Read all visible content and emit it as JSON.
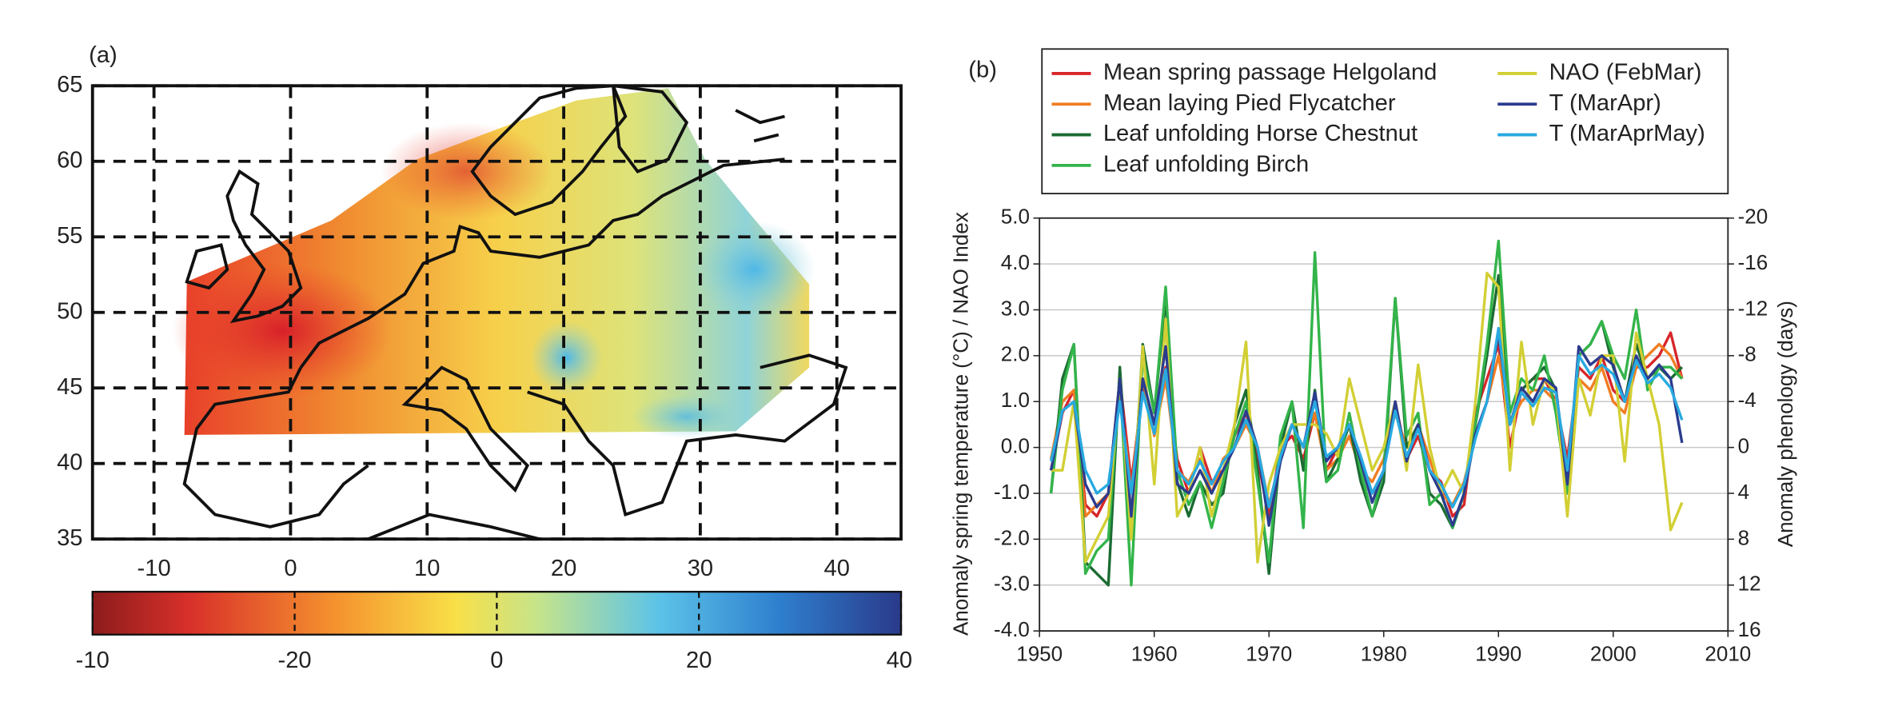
{
  "chart_data": [
    {
      "type": "map",
      "label": "(a)",
      "xlim": [
        -14.5,
        44.7
      ],
      "xticks": [
        -10,
        0,
        10,
        20,
        30,
        40
      ],
      "ylim": [
        35,
        65
      ],
      "yticks": [
        35,
        40,
        45,
        50,
        55,
        60,
        65
      ],
      "grid": true,
      "colorbar_labels": [
        "-10",
        "-20",
        "0",
        "20",
        "40"
      ]
    },
    {
      "type": "line",
      "label": "(b)",
      "ylabel": "Anomaly spring temperature (°C) / NAO Index",
      "y2label": "Anomaly phenology (days)",
      "xlim": [
        1950,
        2010
      ],
      "xticks": [
        1950,
        1960,
        1970,
        1980,
        1990,
        2000,
        2010
      ],
      "ylim": [
        -4,
        5
      ],
      "yticks": [
        {
          "value": -4,
          "label": "-4.0"
        },
        {
          "value": -3,
          "label": "-3.0"
        },
        {
          "value": -2,
          "label": "-2.0"
        },
        {
          "value": -1,
          "label": "-1.0"
        },
        {
          "value": 0,
          "label": "0.0"
        },
        {
          "value": 1,
          "label": "1.0"
        },
        {
          "value": 2,
          "label": "2.0"
        },
        {
          "value": 3,
          "label": "3.0"
        },
        {
          "value": 4,
          "label": "4.0"
        },
        {
          "value": 5,
          "label": "5.0"
        }
      ],
      "y2lim": [
        16,
        -20
      ],
      "y2ticks": [
        -20,
        -16,
        -12,
        -8,
        -4,
        0,
        4,
        8,
        12,
        16
      ],
      "grid": true,
      "x": [
        1951,
        1952,
        1953,
        1954,
        1955,
        1956,
        1957,
        1958,
        1959,
        1960,
        1961,
        1962,
        1963,
        1964,
        1965,
        1966,
        1967,
        1968,
        1969,
        1970,
        1971,
        1972,
        1973,
        1974,
        1975,
        1976,
        1977,
        1978,
        1979,
        1980,
        1981,
        1982,
        1983,
        1984,
        1985,
        1986,
        1987,
        1988,
        1989,
        1990,
        1991,
        1992,
        1993,
        1994,
        1995,
        1996,
        1997,
        1998,
        1999,
        2000,
        2001,
        2002,
        2003,
        2004,
        2005,
        2006
      ],
      "series": [
        {
          "name": "Mean spring passage Helgoland",
          "color": "#d7262a",
          "axis": "y2",
          "values": [
            2,
            -3,
            -5,
            5,
            6,
            4,
            -6,
            3,
            -5,
            -2,
            -7,
            1,
            4,
            0,
            3,
            2,
            -1,
            -3,
            1,
            6,
            0,
            -1,
            1,
            -3,
            2,
            0,
            -2,
            1,
            4,
            2,
            -4,
            1,
            -1,
            2,
            3,
            6,
            5,
            -3,
            -6,
            -9,
            0,
            -5,
            -6,
            -6,
            -4,
            1,
            -7,
            -6,
            -8,
            -5,
            -4,
            -7,
            -7,
            -8,
            -10,
            -6
          ]
        },
        {
          "name": "Mean laying Pied Flycatcher",
          "color": "#f07d22",
          "axis": "y2",
          "values": [
            1,
            -4,
            -5,
            6,
            5,
            4,
            -5,
            4,
            -6,
            -1,
            -6,
            2,
            3,
            1,
            4,
            1,
            0,
            -2,
            0,
            5,
            1,
            -2,
            0,
            -3,
            2,
            1,
            -1,
            2,
            3,
            1,
            -3,
            0,
            -2,
            1,
            4,
            5,
            3,
            -1,
            -4,
            -8,
            -2,
            -4,
            -5,
            -5,
            -4,
            2,
            -6,
            -5,
            -7,
            -4,
            -3,
            -7,
            -8,
            -9,
            -8,
            -6
          ]
        },
        {
          "name": "Leaf unfolding Horse Chestnut",
          "color": "#1b6b32",
          "axis": "y2",
          "values": [
            4,
            -6,
            -9,
            10,
            11,
            12,
            -7,
            8,
            -9,
            -3,
            -13,
            3,
            6,
            3,
            5,
            4,
            -2,
            -5,
            2,
            11,
            0,
            -4,
            2,
            -5,
            3,
            1,
            -2,
            3,
            6,
            3,
            -13,
            0,
            -2,
            4,
            5,
            7,
            4,
            -2,
            -8,
            -15,
            -2,
            -5,
            -6,
            -7,
            -5,
            4,
            -8,
            -9,
            -11,
            -7,
            -4,
            -9,
            -6,
            -7,
            -6,
            -7
          ]
        },
        {
          "name": "Leaf unfolding Birch",
          "color": "#33b44a",
          "axis": "y2",
          "values": [
            4,
            -5,
            -9,
            11,
            9,
            8,
            -6,
            12,
            -8,
            -3,
            -14,
            2,
            5,
            3,
            7,
            3,
            -1,
            -4,
            3,
            10,
            -1,
            -4,
            7,
            -17,
            3,
            2,
            -3,
            2,
            6,
            2,
            -13,
            -1,
            -3,
            5,
            4,
            7,
            4,
            -2,
            -9,
            -18,
            -3,
            -6,
            -5,
            -8,
            -3,
            4,
            -8,
            -9,
            -11,
            -8,
            -6,
            -12,
            -5,
            -7,
            -7,
            -6
          ]
        },
        {
          "name": "NAO (FebMar)",
          "color": "#d2cf34",
          "values": [
            -0.5,
            -0.5,
            1.0,
            -2.5,
            -2.0,
            -1.5,
            1.5,
            -2.0,
            2.2,
            -0.8,
            2.8,
            -1.5,
            -1.0,
            0.0,
            -1.5,
            -0.5,
            0.5,
            2.3,
            -2.5,
            -0.8,
            0.0,
            0.5,
            0.5,
            0.5,
            0.3,
            -0.2,
            1.5,
            0.5,
            -0.5,
            0.0,
            1.0,
            -0.5,
            1.8,
            0.0,
            -1.0,
            -0.5,
            -1.0,
            1.0,
            3.8,
            3.5,
            -0.5,
            2.3,
            0.5,
            1.5,
            1.2,
            -1.5,
            1.5,
            0.7,
            2.0,
            2.0,
            -0.3,
            2.5,
            1.5,
            0.5,
            -1.8,
            -1.2
          ]
        },
        {
          "name": "T (MarApr)",
          "color": "#2b3c8e",
          "values": [
            -0.5,
            0.8,
            1.0,
            -0.8,
            -1.3,
            -1.0,
            1.5,
            -1.5,
            1.5,
            0.5,
            2.2,
            -0.8,
            -1.0,
            -0.5,
            -1.0,
            -0.5,
            0.0,
            0.8,
            0.0,
            -1.7,
            -0.3,
            0.5,
            0.0,
            1.2,
            -0.3,
            0.0,
            0.5,
            -0.3,
            -1.2,
            -0.5,
            1.0,
            -0.3,
            0.5,
            -0.5,
            -1.0,
            -1.7,
            -1.0,
            0.3,
            1.0,
            2.5,
            0.5,
            1.3,
            1.0,
            1.5,
            1.3,
            -0.8,
            2.2,
            1.8,
            2.0,
            1.8,
            1.0,
            2.0,
            1.5,
            1.8,
            1.5,
            0.1
          ]
        },
        {
          "name": "T (MarAprMay)",
          "color": "#28a9e0",
          "values": [
            -0.3,
            0.8,
            1.0,
            -0.5,
            -1.0,
            -0.8,
            1.0,
            -1.0,
            1.2,
            0.3,
            1.7,
            -0.5,
            -0.8,
            -0.3,
            -0.8,
            -0.3,
            0.0,
            0.6,
            0.0,
            -1.3,
            -0.2,
            0.5,
            0.0,
            1.0,
            -0.2,
            0.0,
            0.5,
            -0.2,
            -1.0,
            -0.5,
            0.8,
            -0.2,
            0.4,
            -0.5,
            -0.8,
            -1.3,
            -0.8,
            0.2,
            1.0,
            2.6,
            0.5,
            1.2,
            0.9,
            1.3,
            1.2,
            -0.5,
            2.0,
            1.6,
            1.8,
            1.6,
            1.0,
            1.9,
            1.4,
            1.6,
            1.3,
            0.6
          ]
        }
      ]
    }
  ]
}
